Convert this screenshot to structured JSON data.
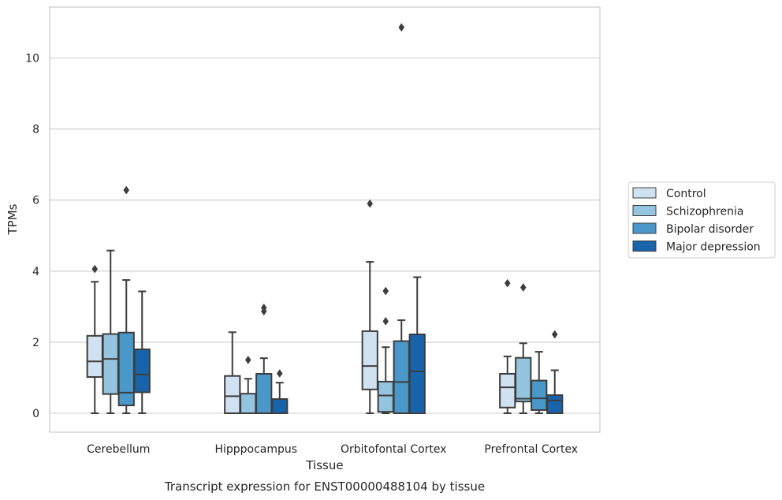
{
  "chart_data": {
    "type": "box",
    "title": "Transcript expression for ENST00000488104 by tissue",
    "xlabel": "Tissue",
    "ylabel": "TPMs",
    "ylim": [
      -0.5,
      11.4
    ],
    "yticks": [
      0,
      2,
      4,
      6,
      8,
      10
    ],
    "grid": "horizontal",
    "legend_position": "right",
    "categories": [
      "Cerebellum",
      "Hipppocampus",
      "Orbitofontal Cortex",
      "Prefrontal Cortex"
    ],
    "series": [
      {
        "name": "Control",
        "color": "#d0e1f2",
        "boxes": [
          {
            "whislo": 0.0,
            "q1": 1.02,
            "med": 1.46,
            "q3": 2.18,
            "whishi": 3.7,
            "fliers": [
              4.06
            ]
          },
          {
            "whislo": 0.0,
            "q1": 0.0,
            "med": 0.48,
            "q3": 1.05,
            "whishi": 2.28,
            "fliers": []
          },
          {
            "whislo": 0.0,
            "q1": 0.67,
            "med": 1.33,
            "q3": 2.31,
            "whishi": 4.26,
            "fliers": [
              5.9
            ]
          },
          {
            "whislo": 0.0,
            "q1": 0.16,
            "med": 0.73,
            "q3": 1.11,
            "whishi": 1.6,
            "fliers": [
              3.66
            ]
          }
        ]
      },
      {
        "name": "Schizophrenia",
        "color": "#94c4df",
        "boxes": [
          {
            "whislo": 0.0,
            "q1": 0.54,
            "med": 1.53,
            "q3": 2.23,
            "whishi": 4.58,
            "fliers": []
          },
          {
            "whislo": 0.0,
            "q1": 0.0,
            "med": 0.0,
            "q3": 0.55,
            "whishi": 0.97,
            "fliers": [
              1.5
            ]
          },
          {
            "whislo": 0.0,
            "q1": 0.04,
            "med": 0.5,
            "q3": 0.89,
            "whishi": 1.86,
            "fliers": [
              2.59,
              3.44
            ]
          },
          {
            "whislo": 0.0,
            "q1": 0.33,
            "med": 0.41,
            "q3": 1.56,
            "whishi": 1.97,
            "fliers": [
              3.54
            ]
          }
        ]
      },
      {
        "name": "Bipolar disorder",
        "color": "#4a98c9",
        "boxes": [
          {
            "whislo": 0.0,
            "q1": 0.22,
            "med": 0.58,
            "q3": 2.27,
            "whishi": 3.75,
            "fliers": [
              6.28
            ]
          },
          {
            "whislo": 0.0,
            "q1": 0.0,
            "med": 0.0,
            "q3": 1.11,
            "whishi": 1.55,
            "fliers": [
              2.87,
              2.97
            ]
          },
          {
            "whislo": 0.0,
            "q1": 0.0,
            "med": 0.88,
            "q3": 2.03,
            "whishi": 2.62,
            "fliers": [
              10.86
            ]
          },
          {
            "whislo": 0.0,
            "q1": 0.09,
            "med": 0.42,
            "q3": 0.92,
            "whishi": 1.73,
            "fliers": []
          }
        ]
      },
      {
        "name": "Major depression",
        "color": "#1764ab",
        "boxes": [
          {
            "whislo": 0.0,
            "q1": 0.59,
            "med": 1.09,
            "q3": 1.8,
            "whishi": 3.43,
            "fliers": []
          },
          {
            "whislo": 0.0,
            "q1": 0.0,
            "med": 0.0,
            "q3": 0.4,
            "whishi": 0.86,
            "fliers": [
              1.12
            ]
          },
          {
            "whislo": 0.0,
            "q1": 0.0,
            "med": 1.18,
            "q3": 2.22,
            "whishi": 3.83,
            "fliers": []
          },
          {
            "whislo": 0.0,
            "q1": 0.0,
            "med": 0.36,
            "q3": 0.51,
            "whishi": 1.21,
            "fliers": [
              2.22
            ]
          }
        ]
      }
    ]
  }
}
